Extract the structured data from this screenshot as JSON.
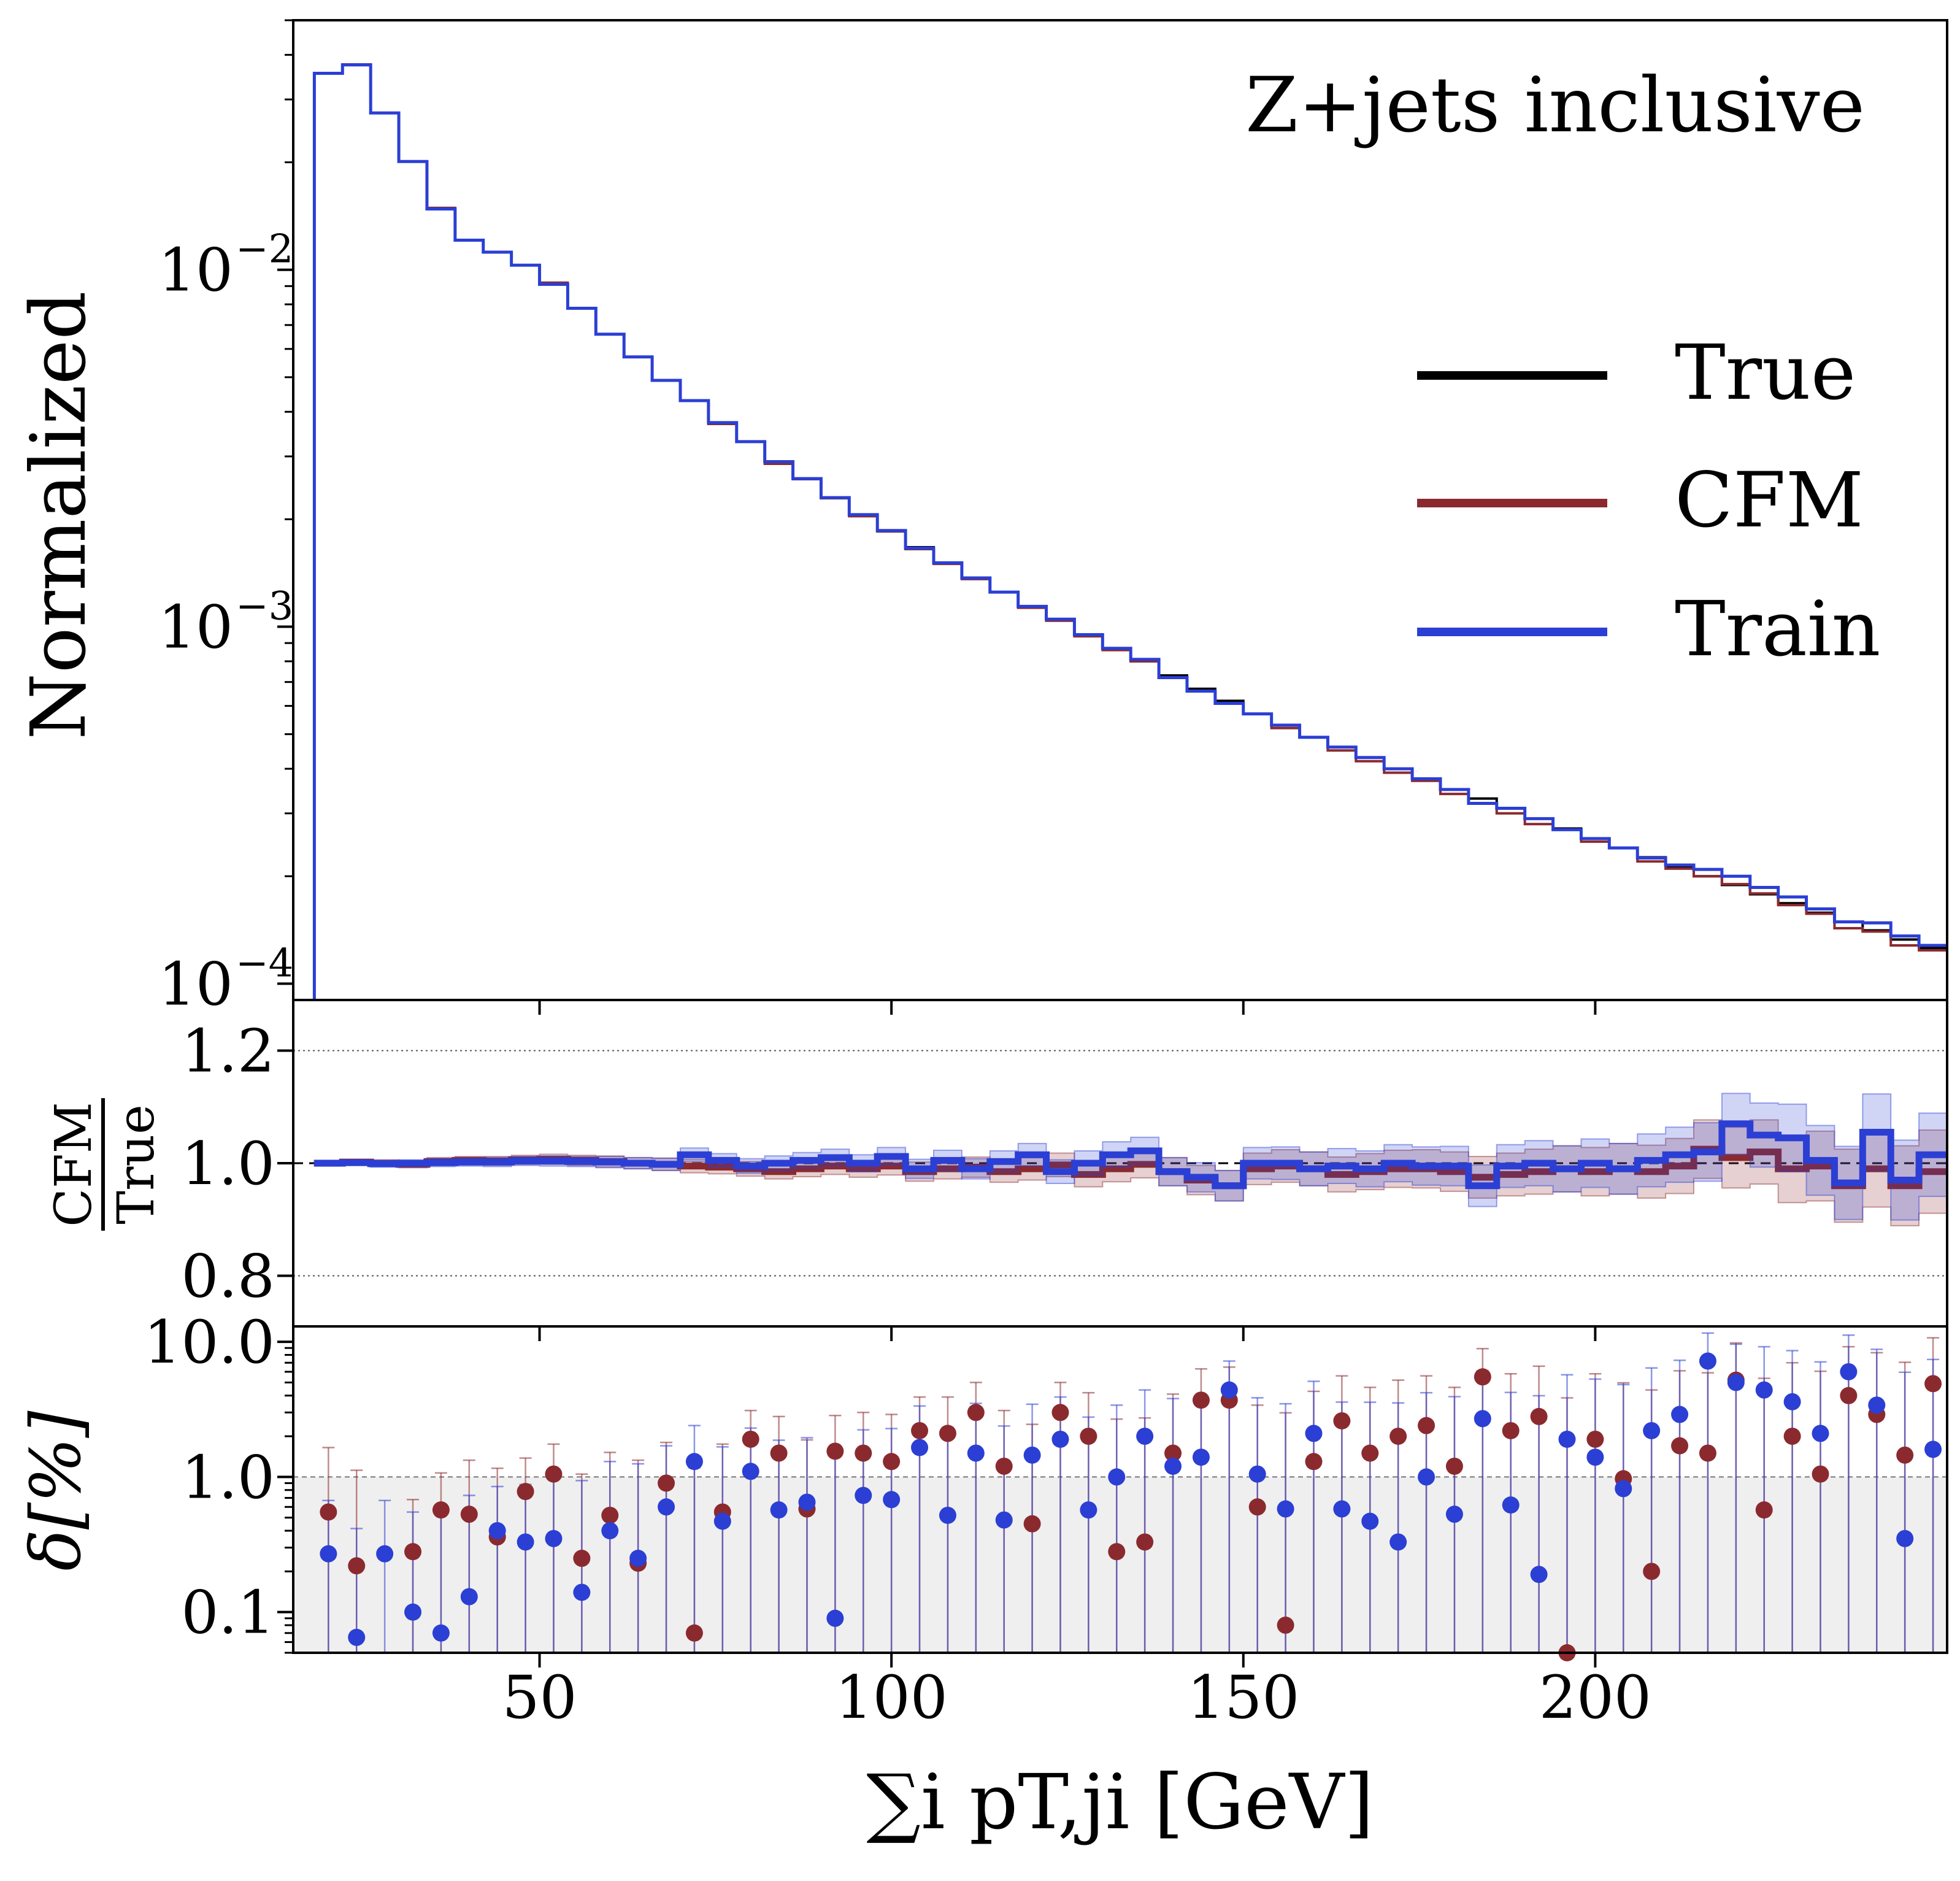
{
  "chart_data": [
    {
      "panel": "main",
      "type": "line",
      "title": "Z+jets inclusive",
      "xlabel": "",
      "ylabel": "Normalized",
      "yscale": "log",
      "xlim": [
        15,
        250
      ],
      "ylim": [
        9e-05,
        0.05
      ],
      "yticks": [
        {
          "value": 0.01,
          "base": "10",
          "exp": "−2"
        },
        {
          "value": 0.001,
          "base": "10",
          "exp": "−3"
        },
        {
          "value": 0.0001,
          "base": "10",
          "exp": "−4"
        }
      ],
      "legend": {
        "placement": "right",
        "entries": [
          "True",
          "CFM",
          "Train"
        ]
      },
      "colors": {
        "True": "#000000",
        "CFM": "#8b2a2e",
        "Train": "#2b3fd4"
      },
      "bin_edges": [
        18,
        22,
        26,
        30,
        34,
        38,
        42,
        46,
        50,
        54,
        58,
        62,
        66,
        70,
        74,
        78,
        82,
        86,
        90,
        94,
        98,
        102,
        106,
        110,
        114,
        118,
        122,
        126,
        130,
        134,
        138,
        142,
        146,
        150,
        154,
        158,
        162,
        166,
        170,
        174,
        178,
        182,
        186,
        190,
        194,
        198,
        202,
        206,
        210,
        214,
        218,
        222,
        226,
        230,
        234,
        238,
        242,
        246,
        250
      ],
      "series": [
        {
          "name": "True",
          "values": [
            0.0355,
            0.0375,
            0.0275,
            0.0201,
            0.0148,
            0.0121,
            0.0112,
            0.0103,
            0.0091,
            0.0078,
            0.0066,
            0.0057,
            0.0049,
            0.0043,
            0.0037,
            0.0033,
            0.0029,
            0.0026,
            0.0023,
            0.00205,
            0.00185,
            0.00167,
            0.00151,
            0.00137,
            0.00125,
            0.00114,
            0.00104,
            0.00095,
            0.00087,
            0.0008,
            0.00073,
            0.00067,
            0.00062,
            0.00057,
            0.00053,
            0.00049,
            0.00046,
            0.00043,
            0.0004,
            0.000375,
            0.00035,
            0.00033,
            0.00031,
            0.00029,
            0.000272,
            0.000255,
            0.00024,
            0.000226,
            0.000213,
            0.0002,
            0.000189,
            0.000178,
            0.000168,
            0.000158,
            0.000149,
            0.000141,
            0.000133,
            0.000126
          ]
        },
        {
          "name": "CFM",
          "values": [
            0.0355,
            0.0376,
            0.0275,
            0.0201,
            0.0149,
            0.0121,
            0.0112,
            0.0103,
            0.0092,
            0.0078,
            0.0066,
            0.0057,
            0.0049,
            0.0043,
            0.0037,
            0.0033,
            0.00286,
            0.00259,
            0.00229,
            0.00204,
            0.00185,
            0.00165,
            0.0015,
            0.00136,
            0.00125,
            0.00113,
            0.00104,
            0.00094,
            0.00086,
            0.0008,
            0.00072,
            0.00066,
            0.00061,
            0.00057,
            0.00052,
            0.00049,
            0.00045,
            0.00042,
            0.00039,
            0.00037,
            0.00034,
            0.00032,
            0.0003,
            0.00028,
            0.00027,
            0.00025,
            0.00024,
            0.00022,
            0.00021,
            0.0002,
            0.00019,
            0.000179,
            0.000166,
            0.000157,
            0.000143,
            0.00014,
            0.000128,
            0.000124
          ]
        },
        {
          "name": "Train",
          "values": [
            0.0355,
            0.0375,
            0.0275,
            0.0201,
            0.0148,
            0.0121,
            0.0112,
            0.0103,
            0.0091,
            0.0078,
            0.0066,
            0.0057,
            0.0049,
            0.0043,
            0.00373,
            0.0033,
            0.0029,
            0.0026,
            0.0023,
            0.00206,
            0.00186,
            0.00166,
            0.00151,
            0.00137,
            0.00125,
            0.00114,
            0.00105,
            0.00095,
            0.00087,
            0.00081,
            0.00072,
            0.00066,
            0.00061,
            0.00057,
            0.00053,
            0.00049,
            0.00046,
            0.00043,
            0.0004,
            0.000375,
            0.00035,
            0.00032,
            0.00031,
            0.00029,
            0.00027,
            0.000255,
            0.00024,
            0.000225,
            0.000215,
            0.000209,
            0.0002,
            0.000186,
            0.000175,
            0.000162,
            0.000149,
            0.000148,
            0.000136,
            0.000128
          ]
        }
      ]
    },
    {
      "panel": "ratio",
      "type": "line",
      "ylabel_num": "CFM",
      "ylabel_den": "True",
      "ylim": [
        0.71,
        1.29
      ],
      "yticks": [
        "1.2",
        "1.0",
        "0.8"
      ],
      "ytick_values": [
        1.2,
        1.0,
        0.8
      ],
      "reference_lines": [
        1.2,
        1.0,
        0.8
      ],
      "bin_edges": [
        18,
        22,
        26,
        30,
        34,
        38,
        42,
        46,
        50,
        54,
        58,
        62,
        66,
        70,
        74,
        78,
        82,
        86,
        90,
        94,
        98,
        102,
        106,
        110,
        114,
        118,
        122,
        126,
        130,
        134,
        138,
        142,
        146,
        150,
        154,
        158,
        162,
        166,
        170,
        174,
        178,
        182,
        186,
        190,
        194,
        198,
        202,
        206,
        210,
        214,
        218,
        222,
        226,
        230,
        234,
        238,
        242,
        246,
        250
      ],
      "series": [
        {
          "name": "CFM",
          "values": [
            1.0,
            1.002,
            1.0,
            0.998,
            1.003,
            1.005,
            1.004,
            1.006,
            1.007,
            1.005,
            1.003,
            1.0,
            0.998,
            0.995,
            0.993,
            0.99,
            0.985,
            0.99,
            0.995,
            0.99,
            0.995,
            0.985,
            0.99,
            0.993,
            0.985,
            0.99,
            0.997,
            0.98,
            0.99,
            0.998,
            0.985,
            0.97,
            0.96,
            0.99,
            0.995,
            0.99,
            0.98,
            0.985,
            0.99,
            0.99,
            0.985,
            0.975,
            0.98,
            0.985,
            0.99,
            0.985,
            0.99,
            0.985,
            0.995,
            1.025,
            1.01,
            1.02,
            0.99,
            0.995,
            0.96,
            0.99,
            0.96,
            0.985
          ],
          "band": [
            0.005,
            0.005,
            0.006,
            0.006,
            0.007,
            0.007,
            0.008,
            0.008,
            0.009,
            0.009,
            0.01,
            0.01,
            0.011,
            0.012,
            0.012,
            0.013,
            0.013,
            0.014,
            0.015,
            0.015,
            0.016,
            0.017,
            0.018,
            0.018,
            0.019,
            0.02,
            0.021,
            0.022,
            0.023,
            0.024,
            0.025,
            0.026,
            0.027,
            0.028,
            0.029,
            0.03,
            0.031,
            0.032,
            0.033,
            0.034,
            0.035,
            0.037,
            0.038,
            0.04,
            0.041,
            0.043,
            0.045,
            0.047,
            0.049,
            0.052,
            0.054,
            0.057,
            0.06,
            0.062,
            0.065,
            0.068,
            0.071,
            0.074
          ]
        },
        {
          "name": "Train",
          "values": [
            1.0,
            1.001,
            0.999,
            1.0,
            1.001,
            1.002,
            1.002,
            1.004,
            1.004,
            1.003,
            1.002,
            1.0,
            0.998,
            1.015,
            1.005,
            0.995,
            1.0,
            1.005,
            1.01,
            1.0,
            1.012,
            0.99,
            1.005,
            0.99,
            1.003,
            1.015,
            0.985,
            1.0,
            1.015,
            1.022,
            0.985,
            0.975,
            0.96,
            1.0,
            1.0,
            0.99,
            0.995,
            0.99,
            1.0,
            0.995,
            0.995,
            0.96,
            0.995,
            1.0,
            0.99,
            1.0,
            0.99,
            1.005,
            1.015,
            1.02,
            1.07,
            1.05,
            1.045,
            1.005,
            0.965,
            1.055,
            0.97,
            1.015
          ],
          "band": [
            0.005,
            0.005,
            0.006,
            0.006,
            0.007,
            0.007,
            0.008,
            0.008,
            0.009,
            0.009,
            0.01,
            0.01,
            0.011,
            0.012,
            0.012,
            0.013,
            0.013,
            0.014,
            0.015,
            0.015,
            0.016,
            0.017,
            0.018,
            0.018,
            0.019,
            0.02,
            0.021,
            0.022,
            0.023,
            0.024,
            0.025,
            0.026,
            0.027,
            0.028,
            0.029,
            0.03,
            0.031,
            0.032,
            0.033,
            0.034,
            0.035,
            0.037,
            0.038,
            0.04,
            0.041,
            0.043,
            0.045,
            0.047,
            0.049,
            0.052,
            0.054,
            0.057,
            0.06,
            0.062,
            0.065,
            0.068,
            0.071,
            0.074
          ]
        }
      ]
    },
    {
      "panel": "delta",
      "type": "scatter",
      "ylabel": "δ[%]",
      "yscale": "log",
      "ylim": [
        0.05,
        13
      ],
      "yticks": [
        "10.0",
        "1.0",
        "0.1"
      ],
      "ytick_values": [
        10,
        1,
        0.1
      ],
      "shaded_below": 1.0,
      "xlabel": "∑i pT,ji [GeV]",
      "xticks": [
        "50",
        "100",
        "150",
        "200"
      ],
      "xtick_values": [
        50,
        100,
        150,
        200
      ],
      "x": [
        20,
        24,
        28,
        32,
        36,
        40,
        44,
        48,
        52,
        56,
        60,
        64,
        68,
        72,
        76,
        80,
        84,
        88,
        92,
        96,
        100,
        104,
        108,
        112,
        116,
        120,
        124,
        128,
        132,
        136,
        140,
        144,
        148,
        152,
        156,
        160,
        164,
        168,
        172,
        176,
        180,
        184,
        188,
        192,
        196,
        200,
        204,
        208,
        212,
        216,
        220,
        224,
        228,
        232,
        236,
        240,
        244,
        248
      ],
      "series": [
        {
          "name": "CFM",
          "values": [
            0.55,
            0.22,
            null,
            0.28,
            0.57,
            0.53,
            0.36,
            0.78,
            1.05,
            0.25,
            0.52,
            0.23,
            0.9,
            0.07,
            0.55,
            1.9,
            1.5,
            0.58,
            1.55,
            1.5,
            1.3,
            2.2,
            2.1,
            3.0,
            1.2,
            0.45,
            3.0,
            2.0,
            0.28,
            0.33,
            1.5,
            3.7,
            3.7,
            0.6,
            0.08,
            1.3,
            2.6,
            1.5,
            2.0,
            2.4,
            1.2,
            5.5,
            2.2,
            2.8,
            0.045,
            1.9,
            0.97,
            0.2,
            1.7,
            1.5,
            5.2,
            0.57,
            2.0,
            1.05,
            4.0,
            2.9,
            1.45,
            4.9
          ],
          "err": [
            1.1,
            0.9,
            null,
            0.4,
            0.5,
            0.8,
            0.8,
            0.6,
            0.7,
            0.8,
            1.0,
            1.1,
            0.9,
            1.1,
            1.2,
            1.2,
            1.3,
            1.3,
            1.3,
            1.5,
            1.6,
            1.7,
            1.8,
            2.0,
            1.9,
            2.0,
            2.0,
            2.2,
            2.4,
            2.4,
            2.6,
            2.6,
            2.8,
            2.8,
            2.9,
            3.0,
            3.0,
            3.1,
            3.2,
            3.2,
            3.4,
            3.4,
            3.6,
            3.8,
            3.8,
            3.9,
            4.0,
            4.2,
            4.4,
            4.4,
            4.6,
            4.8,
            5.0,
            5.0,
            5.2,
            5.4,
            5.6,
            5.8
          ]
        },
        {
          "name": "Train",
          "values": [
            0.27,
            0.065,
            0.27,
            0.1,
            0.07,
            0.13,
            0.4,
            0.33,
            0.35,
            0.14,
            0.4,
            0.25,
            0.6,
            1.3,
            0.47,
            1.1,
            0.57,
            0.65,
            0.09,
            0.73,
            0.68,
            1.65,
            0.52,
            1.5,
            0.48,
            1.45,
            1.9,
            0.57,
            1.0,
            2.0,
            1.2,
            1.4,
            4.4,
            1.05,
            0.58,
            2.1,
            0.58,
            0.47,
            0.33,
            1.0,
            0.53,
            2.7,
            0.62,
            0.19,
            1.9,
            1.4,
            0.82,
            2.2,
            2.9,
            7.2,
            5.0,
            4.4,
            3.6,
            2.1,
            6.0,
            3.4,
            0.35,
            1.6
          ],
          "err": [
            0.4,
            0.35,
            0.4,
            0.45,
            0.5,
            0.6,
            0.45,
            0.55,
            0.7,
            0.8,
            0.9,
            1.0,
            1.1,
            1.1,
            1.2,
            1.2,
            1.3,
            1.3,
            1.4,
            1.5,
            1.6,
            1.7,
            1.8,
            2.0,
            1.9,
            2.0,
            2.0,
            2.2,
            2.4,
            2.4,
            2.6,
            2.6,
            2.8,
            2.8,
            2.9,
            3.0,
            3.0,
            3.1,
            3.2,
            3.2,
            3.4,
            3.4,
            3.6,
            3.8,
            3.8,
            3.9,
            4.0,
            4.2,
            4.4,
            4.4,
            4.6,
            4.8,
            5.0,
            5.0,
            5.2,
            5.4,
            5.6,
            5.8
          ]
        }
      ]
    }
  ]
}
